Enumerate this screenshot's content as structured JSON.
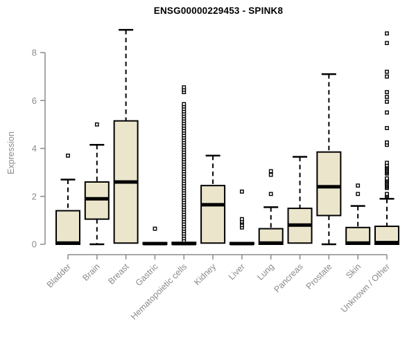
{
  "chart_data": {
    "type": "boxplot",
    "title": "ENSG00000229453 - SPINK8",
    "ylabel": "Expression",
    "xlabel": "",
    "ylim": [
      0,
      9.2
    ],
    "yticks": [
      0,
      2,
      4,
      6,
      8
    ],
    "grid": false,
    "legend": "none",
    "colors": {
      "box_fill": "#EBE5CB",
      "box_stroke": "#000000",
      "median": "#000000",
      "whisker": "#000000",
      "outlier_stroke": "#000000",
      "outlier_fill": "#ffffff",
      "axis": "#8a8a8a",
      "labels": "#8a8a8a",
      "title": "#000000",
      "background": "#ffffff"
    },
    "categories": [
      "Bladder",
      "Brain",
      "Breast",
      "Gastric",
      "Hematopoietic cells",
      "Kidney",
      "Liver",
      "Lung",
      "Pancreas",
      "Prostate",
      "Skin",
      "Unknown / Other"
    ],
    "boxes": [
      {
        "category": "Bladder",
        "q1": 0,
        "median": 0.05,
        "q3": 1.4,
        "whisker_low": 0,
        "whisker_high": 2.7,
        "outliers": [
          3.7
        ]
      },
      {
        "category": "Brain",
        "q1": 1.05,
        "median": 1.9,
        "q3": 2.6,
        "whisker_low": 0,
        "whisker_high": 4.15,
        "outliers": [
          5.0
        ]
      },
      {
        "category": "Breast",
        "q1": 0.05,
        "median": 2.6,
        "q3": 5.15,
        "whisker_low": 0.05,
        "whisker_high": 8.95,
        "outliers": []
      },
      {
        "category": "Gastric",
        "q1": 0,
        "median": 0.03,
        "q3": 0.07,
        "whisker_low": 0,
        "whisker_high": 0.07,
        "outliers": [
          0.65
        ]
      },
      {
        "category": "Hematopoietic cells",
        "q1": 0,
        "median": 0.03,
        "q3": 0.08,
        "whisker_low": 0,
        "whisker_high": 0.08,
        "outliers": [
          0.15,
          0.25,
          0.35,
          0.45,
          0.55,
          0.65,
          0.75,
          0.85,
          0.95,
          1.05,
          1.15,
          1.25,
          1.35,
          1.45,
          1.55,
          1.65,
          1.75,
          1.85,
          1.95,
          2.05,
          2.15,
          2.25,
          2.35,
          2.45,
          2.55,
          2.65,
          2.75,
          2.85,
          2.95,
          3.05,
          3.15,
          3.25,
          3.35,
          3.45,
          3.55,
          3.65,
          3.75,
          3.85,
          3.95,
          4.05,
          4.15,
          4.25,
          4.35,
          4.45,
          4.55,
          4.65,
          4.75,
          4.85,
          4.95,
          5.05,
          5.15,
          5.25,
          5.35,
          5.45,
          5.55,
          5.65,
          5.75,
          5.85,
          6.35,
          6.45,
          6.55
        ]
      },
      {
        "category": "Kidney",
        "q1": 0.05,
        "median": 1.65,
        "q3": 2.45,
        "whisker_low": 0.05,
        "whisker_high": 3.7,
        "outliers": []
      },
      {
        "category": "Liver",
        "q1": 0,
        "median": 0.03,
        "q3": 0.07,
        "whisker_low": 0,
        "whisker_high": 0.07,
        "outliers": [
          0.7,
          0.8,
          0.9,
          0.95,
          1.05,
          2.2
        ]
      },
      {
        "category": "Lung",
        "q1": 0,
        "median": 0.05,
        "q3": 0.65,
        "whisker_low": 0,
        "whisker_high": 1.55,
        "outliers": [
          2.1,
          2.9,
          3.05
        ]
      },
      {
        "category": "Pancreas",
        "q1": 0.05,
        "median": 0.8,
        "q3": 1.5,
        "whisker_low": 0.05,
        "whisker_high": 3.65,
        "outliers": []
      },
      {
        "category": "Prostate",
        "q1": 1.2,
        "median": 2.4,
        "q3": 3.85,
        "whisker_low": 0,
        "whisker_high": 7.1,
        "outliers": []
      },
      {
        "category": "Skin",
        "q1": 0,
        "median": 0.05,
        "q3": 0.7,
        "whisker_low": 0,
        "whisker_high": 1.6,
        "outliers": [
          2.1,
          2.45
        ]
      },
      {
        "category": "Unknown / Other",
        "q1": 0,
        "median": 0.07,
        "q3": 0.75,
        "whisker_low": 0,
        "whisker_high": 1.9,
        "outliers": [
          2.0,
          2.05,
          2.1,
          2.35,
          2.4,
          2.45,
          2.5,
          2.55,
          2.6,
          2.65,
          2.7,
          2.75,
          2.95,
          3.0,
          3.05,
          3.1,
          3.15,
          3.2,
          3.25,
          3.3,
          3.4,
          4.15,
          4.25,
          4.85,
          5.5,
          5.95,
          6.15,
          6.35,
          7.0,
          7.2,
          8.4,
          8.8
        ]
      }
    ]
  }
}
